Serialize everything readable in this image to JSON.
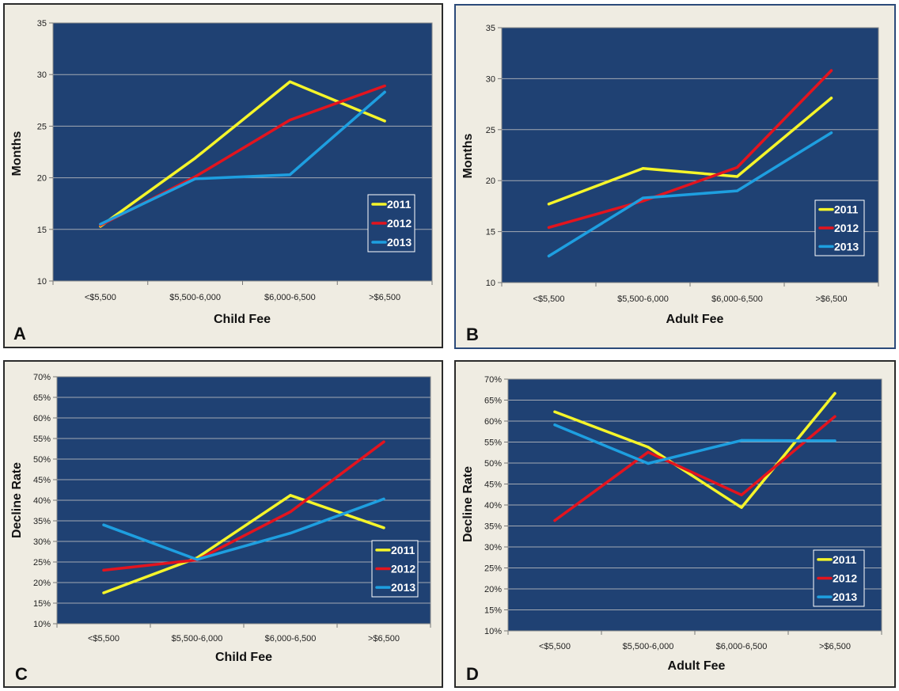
{
  "chart_data": [
    {
      "panel": "A",
      "type": "line",
      "xlabel": "Child Fee",
      "ylabel": "Months",
      "categories": [
        "<$5,500",
        "$5,500-6,000",
        "$6,000-6,500",
        ">$6,500"
      ],
      "ylim": [
        10,
        35
      ],
      "yticks": [
        10,
        15,
        20,
        25,
        30,
        35
      ],
      "y_format": "number",
      "grid": true,
      "legend_position": "right",
      "series": [
        {
          "name": "2011",
          "color": "#f5f52a",
          "values": [
            15.3,
            21.9,
            29.3,
            25.5
          ]
        },
        {
          "name": "2012",
          "color": "#e3141e",
          "values": [
            15.4,
            20.1,
            25.6,
            28.9
          ]
        },
        {
          "name": "2013",
          "color": "#1e9fe0",
          "values": [
            15.5,
            19.9,
            20.3,
            28.3
          ]
        }
      ]
    },
    {
      "panel": "B",
      "type": "line",
      "xlabel": "Adult Fee",
      "ylabel": "Months",
      "categories": [
        "<$5,500",
        "$5,500-6,000",
        "$6,000-6,500",
        ">$6,500"
      ],
      "ylim": [
        10,
        35
      ],
      "yticks": [
        10,
        15,
        20,
        25,
        30,
        35
      ],
      "y_format": "number",
      "grid": true,
      "legend_position": "right",
      "series": [
        {
          "name": "2011",
          "color": "#f5f52a",
          "values": [
            17.7,
            21.2,
            20.4,
            28.1
          ]
        },
        {
          "name": "2012",
          "color": "#e3141e",
          "values": [
            15.4,
            18.0,
            21.3,
            30.8
          ]
        },
        {
          "name": "2013",
          "color": "#1e9fe0",
          "values": [
            12.6,
            18.3,
            19.0,
            24.7
          ]
        }
      ]
    },
    {
      "panel": "C",
      "type": "line",
      "xlabel": "Child Fee",
      "ylabel": "Decline Rate",
      "categories": [
        "<$5,500",
        "$5,500-6,000",
        "$6,000-6,500",
        ">$6,500"
      ],
      "ylim": [
        10,
        70
      ],
      "yticks": [
        10,
        15,
        20,
        25,
        30,
        35,
        40,
        45,
        50,
        55,
        60,
        65,
        70
      ],
      "y_format": "percent",
      "grid": true,
      "legend_position": "bottom-right",
      "series": [
        {
          "name": "2011",
          "color": "#f5f52a",
          "values": [
            17.5,
            26.0,
            41.2,
            33.3
          ]
        },
        {
          "name": "2012",
          "color": "#e3141e",
          "values": [
            23.0,
            25.5,
            37.2,
            54.2
          ]
        },
        {
          "name": "2013",
          "color": "#1e9fe0",
          "values": [
            34.0,
            25.6,
            32.0,
            40.3
          ]
        }
      ]
    },
    {
      "panel": "D",
      "type": "line",
      "xlabel": "Adult Fee",
      "ylabel": "Decline Rate",
      "categories": [
        "<$5,500",
        "$5,500-6,000",
        "$6,000-6,500",
        ">$6,500"
      ],
      "ylim": [
        10,
        70
      ],
      "yticks": [
        10,
        15,
        20,
        25,
        30,
        35,
        40,
        45,
        50,
        55,
        60,
        65,
        70
      ],
      "y_format": "percent",
      "grid": true,
      "legend_position": "bottom-right",
      "series": [
        {
          "name": "2011",
          "color": "#f5f52a",
          "values": [
            62.2,
            53.8,
            39.4,
            66.6
          ]
        },
        {
          "name": "2012",
          "color": "#e3141e",
          "values": [
            36.3,
            52.6,
            42.4,
            61.1
          ]
        },
        {
          "name": "2013",
          "color": "#1e9fe0",
          "values": [
            59.1,
            49.9,
            55.4,
            55.3
          ]
        }
      ]
    }
  ]
}
